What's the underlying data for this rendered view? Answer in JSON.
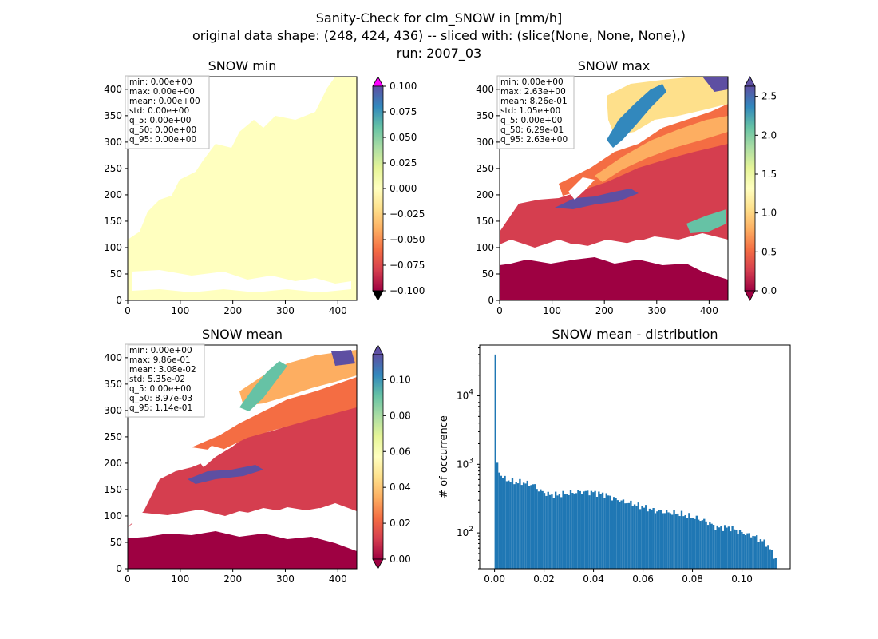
{
  "suptitle": [
    "Sanity-Check for clm_SNOW in [mm/h]",
    "original data shape: (248, 424, 436) -- sliced with: (slice(None, None, None),)",
    "run: 2007_03"
  ],
  "chart_data": [
    {
      "type": "heatmap",
      "title": "SNOW min",
      "xlim": [
        0,
        436
      ],
      "ylim": [
        0,
        424
      ],
      "xticks": [
        "0",
        "100",
        "200",
        "300",
        "400"
      ],
      "yticks": [
        "0",
        "50",
        "100",
        "150",
        "200",
        "250",
        "300",
        "350",
        "400"
      ],
      "colorbar": {
        "range": [
          -0.1,
          0.1
        ],
        "ticks": [
          "0.100",
          "0.075",
          "0.050",
          "0.025",
          "0.000",
          "−0.025",
          "−0.050",
          "−0.075",
          "−0.100"
        ],
        "extend": "both",
        "over_color": "#ff00ff",
        "under_color": "#000000"
      },
      "stats": [
        "min: 0.00e+00",
        "max: 0.00e+00",
        "mean: 0.00e+00",
        "std: 0.00e+00",
        "q_5: 0.00e+00",
        "q_50: 0.00e+00",
        "q_95: 0.00e+00"
      ]
    },
    {
      "type": "heatmap",
      "title": "SNOW max",
      "xlim": [
        0,
        436
      ],
      "ylim": [
        0,
        424
      ],
      "xticks": [
        "0",
        "100",
        "200",
        "300",
        "400"
      ],
      "yticks": [
        "0",
        "50",
        "100",
        "150",
        "200",
        "250",
        "300",
        "350",
        "400"
      ],
      "colorbar": {
        "range": [
          0,
          2.63
        ],
        "ticks": [
          "2.5",
          "2.0",
          "1.5",
          "1.0",
          "0.5",
          "0.0"
        ],
        "extend": "both",
        "colormap": "Spectral"
      },
      "stats": [
        "min: 0.00e+00",
        "max: 2.63e+00",
        "mean: 8.26e-01",
        "std: 1.05e+00",
        "q_5: 0.00e+00",
        "q_50: 6.29e-01",
        "q_95: 2.63e+00"
      ]
    },
    {
      "type": "heatmap",
      "title": "SNOW mean",
      "xlim": [
        0,
        436
      ],
      "ylim": [
        0,
        424
      ],
      "xticks": [
        "0",
        "100",
        "200",
        "300",
        "400"
      ],
      "yticks": [
        "0",
        "50",
        "100",
        "150",
        "200",
        "250",
        "300",
        "350",
        "400"
      ],
      "colorbar": {
        "range": [
          0,
          0.114
        ],
        "ticks": [
          "0.10",
          "0.08",
          "0.06",
          "0.04",
          "0.02",
          "0.00"
        ],
        "extend": "both",
        "colormap": "Spectral"
      },
      "stats": [
        "min: 0.00e+00",
        "max: 9.86e-01",
        "mean: 3.08e-02",
        "std: 5.35e-02",
        "q_5: 0.00e+00",
        "q_50: 8.97e-03",
        "q_95: 1.14e-01"
      ]
    },
    {
      "type": "bar",
      "title": "SNOW mean - distribution",
      "ylabel": "# of occurrence",
      "xlabel": "",
      "yscale": "log",
      "xlim": [
        -0.006,
        0.1195
      ],
      "ylim": [
        30,
        55000
      ],
      "xticks": [
        "0.00",
        "0.02",
        "0.04",
        "0.06",
        "0.08",
        "0.10"
      ],
      "yticks": [
        "10^2",
        "10^3",
        "10^4"
      ],
      "color": "#1f77b4",
      "bin_range": [
        0,
        0.114
      ],
      "bins": 150,
      "counts_anchor_x": [
        0.0,
        0.0008,
        0.002,
        0.004,
        0.007,
        0.012,
        0.016,
        0.018,
        0.022,
        0.026,
        0.03,
        0.035,
        0.04,
        0.045,
        0.05,
        0.055,
        0.06,
        0.065,
        0.07,
        0.075,
        0.08,
        0.085,
        0.09,
        0.095,
        0.1,
        0.105,
        0.11,
        0.114
      ],
      "counts_anchor_y": [
        40000,
        1100,
        750,
        620,
        560,
        540,
        500,
        420,
        360,
        360,
        380,
        400,
        390,
        360,
        300,
        270,
        240,
        210,
        200,
        190,
        170,
        150,
        120,
        120,
        100,
        90,
        70,
        40
      ]
    }
  ]
}
